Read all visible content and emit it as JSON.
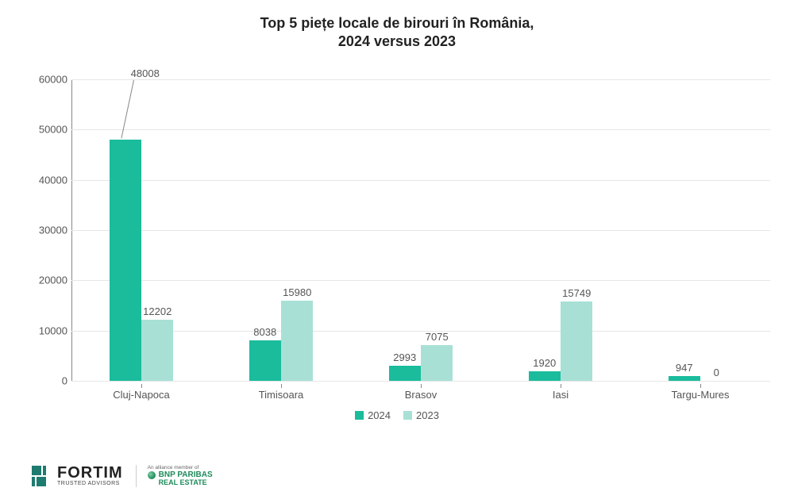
{
  "title_line1": "Top 5 piețe locale de birouri în România,",
  "title_line2": "2024 versus 2023",
  "title_fontsize": 18,
  "title_color": "#222222",
  "chart": {
    "type": "bar",
    "categories": [
      "Cluj-Napoca",
      "Timisoara",
      "Brasov",
      "Iasi",
      "Targu-Mures"
    ],
    "series": [
      {
        "name": "2024",
        "color": "#1abc9c",
        "values": [
          48008,
          8038,
          2993,
          1920,
          947
        ]
      },
      {
        "name": "2023",
        "color": "#a8e0d6",
        "values": [
          12202,
          15980,
          7075,
          15749,
          0
        ]
      }
    ],
    "ylim": [
      0,
      60000
    ],
    "ytick_step": 10000,
    "yticks": [
      0,
      10000,
      20000,
      30000,
      40000,
      50000,
      60000
    ],
    "label_fontsize": 13,
    "axis_fontsize": 13,
    "grid_color": "#e6e6e6",
    "axis_color": "#888888",
    "background_color": "#ffffff",
    "bar_group_width": 0.46,
    "first_bar_callout": true
  },
  "legend": {
    "items": [
      {
        "label": "2024",
        "color": "#1abc9c"
      },
      {
        "label": "2023",
        "color": "#a8e0d6"
      }
    ],
    "fontsize": 13
  },
  "logos": {
    "fortim_name": "FORTIM",
    "fortim_tag": "TRUSTED ADVISORS",
    "bnp_top": "An alliance member of",
    "bnp_name": "BNP PARIBAS",
    "bnp_sub": "REAL ESTATE"
  }
}
